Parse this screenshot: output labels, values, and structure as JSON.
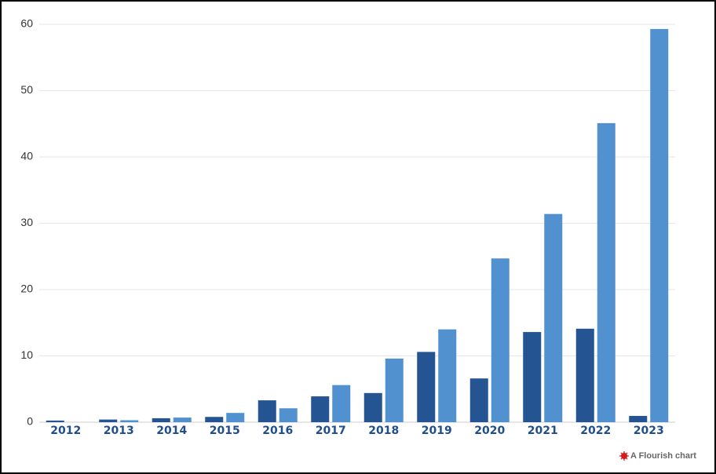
{
  "chart_data": {
    "type": "bar",
    "categories": [
      "2012",
      "2013",
      "2014",
      "2015",
      "2016",
      "2017",
      "2018",
      "2019",
      "2020",
      "2021",
      "2022",
      "2023"
    ],
    "series": [
      {
        "color": "#245592",
        "values": [
          0.25,
          0.4,
          0.6,
          0.8,
          3.3,
          3.9,
          4.4,
          10.6,
          6.6,
          13.6,
          14.1,
          0.95
        ]
      },
      {
        "color": "#5291cf",
        "values": [
          0,
          0.3,
          0.7,
          1.4,
          2.1,
          5.6,
          9.6,
          14,
          24.7,
          31.4,
          45.1,
          59.3
        ]
      }
    ],
    "ylim": [
      0,
      60
    ],
    "yticks": [
      0,
      10,
      20,
      30,
      40,
      50,
      60
    ],
    "grid": true,
    "credit": "A Flourish chart"
  }
}
